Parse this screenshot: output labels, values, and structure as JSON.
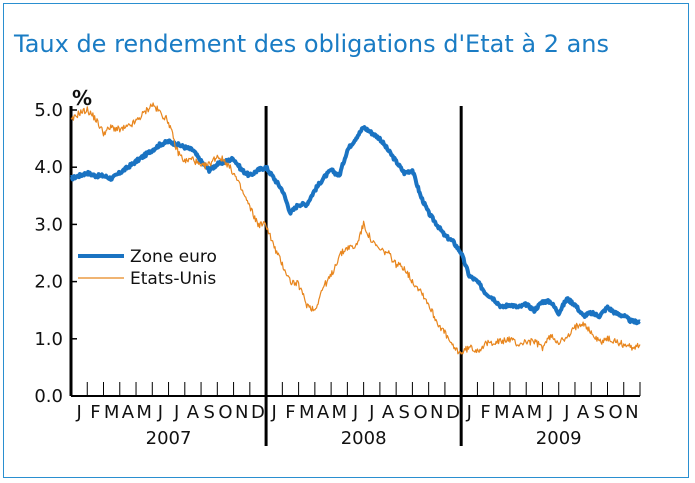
{
  "chart_data": {
    "type": "line",
    "title": "Taux de rendement des obligations d'Etat à 2 ans",
    "ylabel": "%",
    "ylim": [
      0,
      5
    ],
    "yticks": [
      "0.0",
      "1.0",
      "2.0",
      "3.0",
      "4.0",
      "5.0"
    ],
    "xlim": [
      0,
      35
    ],
    "month_labels": [
      "J",
      "F",
      "M",
      "A",
      "M",
      "J",
      "J",
      "A",
      "S",
      "O",
      "N",
      "D",
      "J",
      "F",
      "M",
      "A",
      "M",
      "J",
      "J",
      "A",
      "S",
      "O",
      "N",
      "D",
      "J",
      "F",
      "M",
      "A",
      "M",
      "J",
      "J",
      "A",
      "S",
      "O",
      "N"
    ],
    "years": [
      "2007",
      "2008",
      "2009"
    ],
    "legend_position": "middle-left",
    "colors": {
      "zone_euro": "#1a73c2",
      "etats_unis": "#e8861e",
      "frame": "#2a8fd0"
    },
    "series": [
      {
        "name": "Zone euro",
        "x": [
          0,
          0.5,
          1,
          1.5,
          2,
          2.5,
          3,
          3.5,
          4,
          4.5,
          5,
          5.5,
          6,
          6.5,
          7,
          7.5,
          8,
          8.5,
          9,
          9.5,
          10,
          10.5,
          11,
          11.5,
          12,
          12.5,
          13,
          13.5,
          14,
          14.5,
          15,
          15.5,
          16,
          16.5,
          17,
          17.5,
          18,
          18.5,
          19,
          19.5,
          20,
          20.5,
          21,
          21.5,
          22,
          22.5,
          23,
          23.5,
          24,
          24.5,
          25,
          25.5,
          26,
          26.5,
          27,
          27.5,
          28,
          28.5,
          29,
          29.5,
          30,
          30.5,
          31,
          31.5,
          32,
          32.5,
          33,
          33.5,
          34,
          34.5,
          35
        ],
        "values": [
          3.8,
          3.85,
          3.9,
          3.85,
          3.85,
          3.8,
          3.9,
          4.0,
          4.1,
          4.2,
          4.3,
          4.4,
          4.45,
          4.4,
          4.35,
          4.3,
          4.1,
          3.95,
          4.05,
          4.1,
          4.15,
          3.95,
          3.85,
          3.95,
          4.0,
          3.8,
          3.6,
          3.2,
          3.35,
          3.35,
          3.6,
          3.8,
          3.95,
          3.85,
          4.3,
          4.5,
          4.7,
          4.6,
          4.5,
          4.3,
          4.1,
          3.9,
          3.95,
          3.5,
          3.2,
          3.0,
          2.8,
          2.7,
          2.5,
          2.1,
          2.0,
          1.8,
          1.7,
          1.55,
          1.6,
          1.55,
          1.6,
          1.5,
          1.65,
          1.65,
          1.45,
          1.7,
          1.6,
          1.4,
          1.45,
          1.4,
          1.55,
          1.45,
          1.4,
          1.3,
          1.3
        ]
      },
      {
        "name": "Etats-Unis",
        "x": [
          0,
          0.5,
          1,
          1.5,
          2,
          2.5,
          3,
          3.5,
          4,
          4.5,
          5,
          5.5,
          6,
          6.5,
          7,
          7.5,
          8,
          8.5,
          9,
          9.5,
          10,
          10.5,
          11,
          11.5,
          12,
          12.5,
          13,
          13.5,
          14,
          14.5,
          15,
          15.5,
          16,
          16.5,
          17,
          17.5,
          18,
          18.5,
          19,
          19.5,
          20,
          20.5,
          21,
          21.5,
          22,
          22.5,
          23,
          23.5,
          24,
          24.5,
          25,
          25.5,
          26,
          26.5,
          27,
          27.5,
          28,
          28.5,
          29,
          29.5,
          30,
          30.5,
          31,
          31.5,
          32,
          32.5,
          33,
          33.5,
          34,
          34.5,
          35
        ],
        "values": [
          4.8,
          4.95,
          5.0,
          4.85,
          4.6,
          4.7,
          4.65,
          4.7,
          4.8,
          4.95,
          5.1,
          4.95,
          4.8,
          4.3,
          4.1,
          4.15,
          4.0,
          4.05,
          4.2,
          4.1,
          3.9,
          3.6,
          3.3,
          3.0,
          3.0,
          2.6,
          2.3,
          2.0,
          1.95,
          1.6,
          1.5,
          1.9,
          2.1,
          2.45,
          2.6,
          2.6,
          3.0,
          2.7,
          2.55,
          2.5,
          2.3,
          2.25,
          2.0,
          1.85,
          1.6,
          1.3,
          1.1,
          0.85,
          0.75,
          0.85,
          0.8,
          0.9,
          0.95,
          0.95,
          1.0,
          0.9,
          0.95,
          0.95,
          0.85,
          1.05,
          0.95,
          1.0,
          1.2,
          1.3,
          1.1,
          0.95,
          1.0,
          0.95,
          0.9,
          0.85,
          0.9
        ]
      }
    ]
  }
}
